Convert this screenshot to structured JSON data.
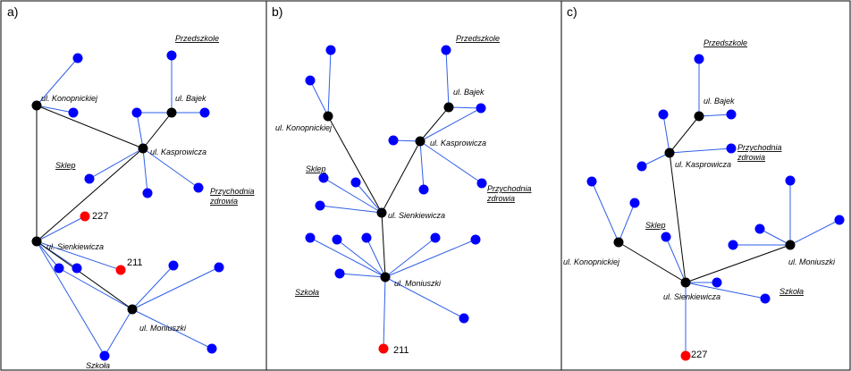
{
  "colors": {
    "hub": "#000000",
    "leaf": "#0000ff",
    "special": "#ff0000",
    "blue_edge": "#2f5fe8",
    "black_edge": "#000000"
  },
  "panels": [
    {
      "letter": "a)",
      "labels": {
        "konopnickiej": "ul. Konopnickiej",
        "bajek": "ul. Bajek",
        "kasprowicza": "ul. Kasprowicza",
        "sienkiewicza": "ul. Sienkiewicza",
        "moniuszki": "ul. Moniuszki",
        "przedszkole": "Przedszkole",
        "przychodnia_1": "Przychodnia",
        "przychodnia_2": "zdrowia",
        "sklep": "Sklep",
        "szkola": "Szkoła",
        "n227": "227",
        "n211": "211"
      }
    },
    {
      "letter": "b)",
      "labels": {
        "konopnickiej": "ul. Konopnickiej",
        "bajek": "ul. Bajek",
        "kasprowicza": "ul. Kasprowicza",
        "sienkiewicza": "ul. Sienkiewicza",
        "moniuszki": "ul. Moniuszki",
        "przedszkole": "Przedszkole",
        "przychodnia_1": "Przychodnia",
        "przychodnia_2": "zdrowia",
        "sklep": "Sklep",
        "szkola": "Szkoła",
        "n211": "211"
      }
    },
    {
      "letter": "c)",
      "labels": {
        "konopnickiej": "ul. Konopnickiej",
        "bajek": "ul. Bajek",
        "kasprowicza": "ul. Kasprowicza",
        "sienkiewicza": "ul. Sienkiewicza",
        "moniuszki": "ul. Moniuszki",
        "przedszkole": "Przedszkole",
        "przychodnia_1": "Przychodnia",
        "przychodnia_2": "zdrowia",
        "sklep": "Sklep",
        "szkola": "Szkoła",
        "n227": "227"
      }
    }
  ]
}
